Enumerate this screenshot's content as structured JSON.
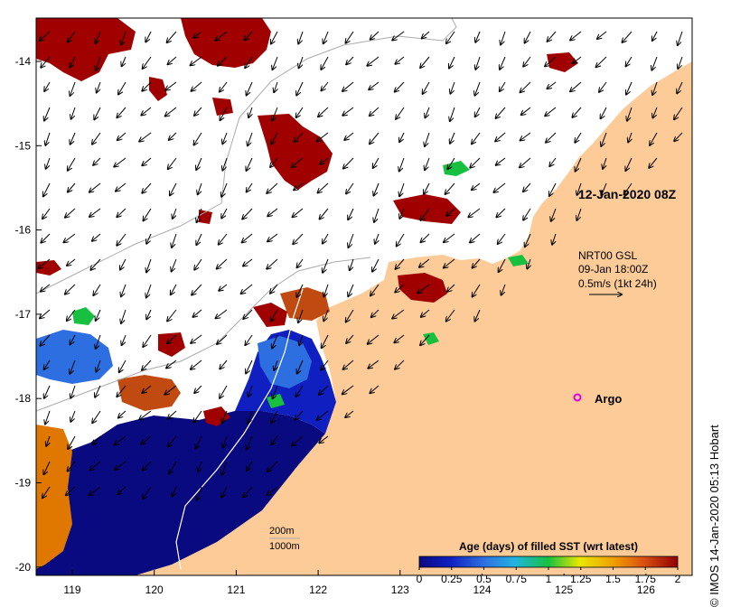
{
  "map": {
    "date_label": "12-Jan-2020 08Z",
    "current_info": {
      "source": "NRT00 GSL",
      "time": "09-Jan 18:00Z",
      "scale": "0.5m/s (1kt 24h)"
    },
    "argo_label": "Argo",
    "isobaths": [
      "200m",
      "1000m"
    ],
    "credit": "© IMOS 14-Jan-2020 05:13 Hobart",
    "x_ticks": [
      "119",
      "120",
      "121",
      "122",
      "123",
      "124",
      "125",
      "126"
    ],
    "y_ticks": [
      "-14",
      "-15",
      "-16",
      "-17",
      "-18",
      "-19",
      "-20"
    ],
    "colorbar": {
      "title": "Age (days) of filled SST (wrt latest)",
      "ticks": [
        "0",
        "0.25",
        "0.5",
        "0.75",
        "1",
        "1.25",
        "1.5",
        "1.75",
        "2"
      ]
    },
    "colors": {
      "land": "#fccb97",
      "ocean": "#ffffff",
      "old_sst": "#a00000",
      "recent_sst": "#0c0c8c",
      "argo": "#e000e0"
    }
  }
}
